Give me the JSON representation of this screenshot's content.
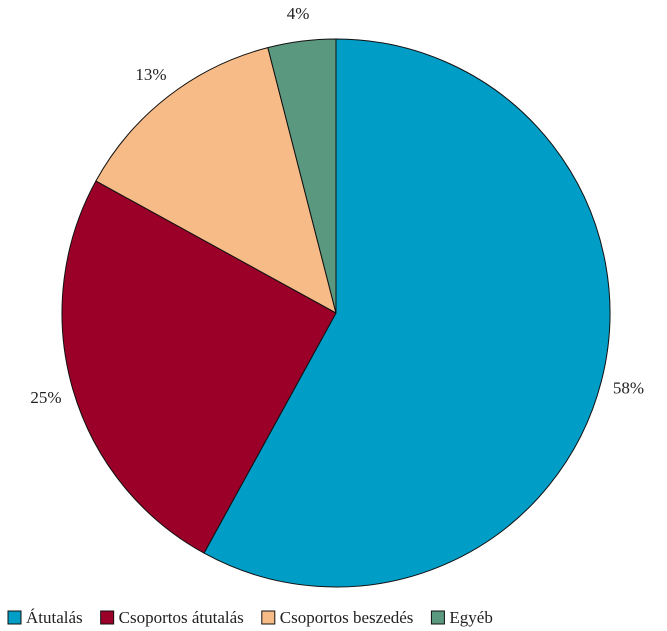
{
  "chart_data": {
    "type": "pie",
    "title": "",
    "start": "top",
    "direction": "clockwise",
    "slices": [
      {
        "label": "Átutalás",
        "value": 58,
        "display": "58%",
        "color": "#009DC7"
      },
      {
        "label": "Csoportos átutalás",
        "value": 25,
        "display": "25%",
        "color": "#9B0029"
      },
      {
        "label": "Csoportos beszedés",
        "value": 13,
        "display": "13%",
        "color": "#F7BB88"
      },
      {
        "label": "Egyéb",
        "value": 4,
        "display": "4%",
        "color": "#5B9880"
      }
    ],
    "legend_position": "bottom"
  }
}
